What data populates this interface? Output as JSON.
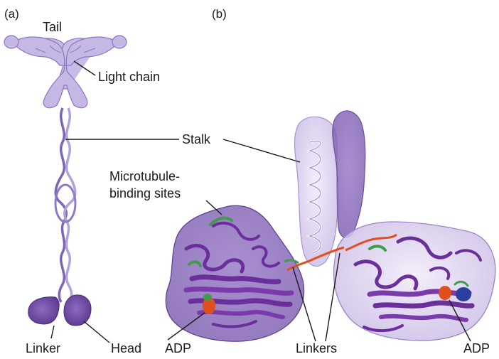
{
  "panels": {
    "a": "(a)",
    "b": "(b)"
  },
  "labels": {
    "tail": "Tail",
    "light_chain": "Light chain",
    "stalk": "Stalk",
    "microtubule_line1": "Microtubule-",
    "microtubule_line2": "binding sites",
    "linker": "Linker",
    "head": "Head",
    "adp_left": "ADP",
    "linkers": "Linkers",
    "adp_right": "ADP"
  },
  "colors": {
    "lavender": "#b9a8dc",
    "lavender_outline": "#8a76c0",
    "purple_surface": "#7d5bb0",
    "ribbon_purple": "#6a2f9a",
    "ribbon_green": "#3f9c4a",
    "ribbon_orange": "#e0501e",
    "ribbon_blue": "#2a3fa0",
    "stalk_light": "#e6def2"
  }
}
